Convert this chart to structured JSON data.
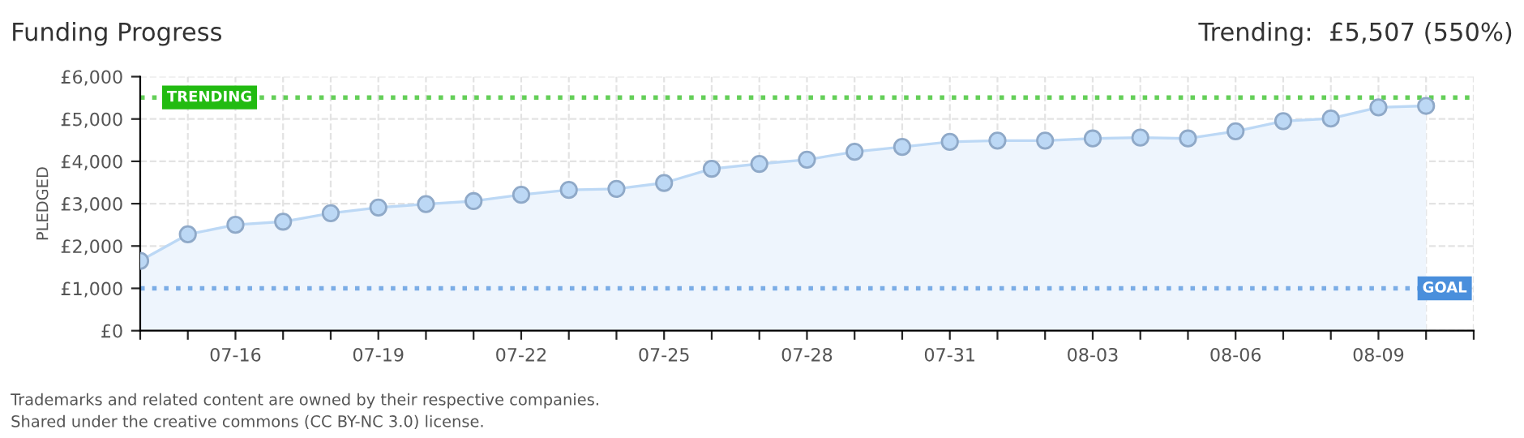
{
  "chart_data": {
    "type": "area",
    "title": "Funding Progress",
    "subtitle": "Trending:  £5,507 (550%)",
    "ylabel": "PLEDGED",
    "categories": [
      null,
      null,
      "07-16",
      null,
      null,
      "07-19",
      null,
      null,
      "07-22",
      null,
      null,
      "07-25",
      null,
      null,
      "07-28",
      null,
      null,
      "07-31",
      null,
      null,
      "08-03",
      null,
      null,
      "08-06",
      null,
      null,
      "08-09",
      null
    ],
    "series": [
      {
        "color": "#bcd8f5",
        "values": [
          1650,
          2275,
          2500,
          2575,
          2775,
          2910,
          2990,
          3060,
          3210,
          3325,
          3350,
          3490,
          3825,
          3940,
          4040,
          4225,
          4340,
          4460,
          4490,
          4490,
          4540,
          4560,
          4540,
          4710,
          4950,
          5010,
          5275,
          5310
        ]
      }
    ],
    "ylim": [
      0,
      6000
    ],
    "yticks": [
      {
        "value": 0,
        "label": "£0"
      },
      {
        "value": 1000,
        "label": "£1,000"
      },
      {
        "value": 2000,
        "label": "£2,000"
      },
      {
        "value": 3000,
        "label": "£3,000"
      },
      {
        "value": 4000,
        "label": "£4,000"
      },
      {
        "value": 5000,
        "label": "£5,000"
      },
      {
        "value": 6000,
        "label": "£6,000"
      }
    ],
    "ref_lines": [
      {
        "axis": "y",
        "value": 5507,
        "label": "TRENDING",
        "color": "#22bb11",
        "line_style": "dotted"
      },
      {
        "axis": "y",
        "value": 1000,
        "label": "GOAL",
        "color": "#4a8fdc",
        "line_style": "dotted"
      }
    ],
    "grid": true,
    "marker": "circle",
    "line_style": "solid",
    "annotations": [
      "Trademarks and related content are owned by their respective companies.",
      "Shared under the creative commons (CC BY-NC 3.0) license."
    ]
  }
}
